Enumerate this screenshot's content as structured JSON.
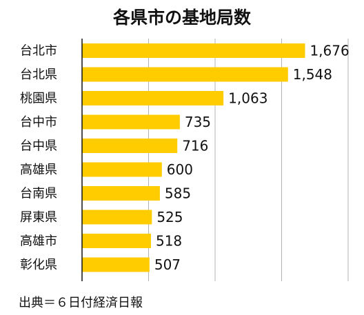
{
  "chart_data": {
    "type": "bar",
    "orientation": "horizontal",
    "title": "各県市の基地局数",
    "categories": [
      "台北市",
      "台北県",
      "桃園県",
      "台中市",
      "台中県",
      "高雄県",
      "台南県",
      "屏東県",
      "高雄市",
      "彰化県"
    ],
    "values": [
      1676,
      1548,
      1063,
      735,
      716,
      600,
      585,
      525,
      518,
      507
    ],
    "value_labels": [
      "1,676",
      "1,548",
      "1,063",
      "735",
      "716",
      "600",
      "585",
      "525",
      "518",
      "507"
    ],
    "xlim": [
      0,
      2000
    ],
    "x_gridlines": [
      500,
      1000,
      1500,
      2000
    ],
    "grid": true,
    "bar_color": "#ffcc00",
    "grid_color": "#b3b3b3"
  },
  "source_note": "出典＝６日付経済日報"
}
